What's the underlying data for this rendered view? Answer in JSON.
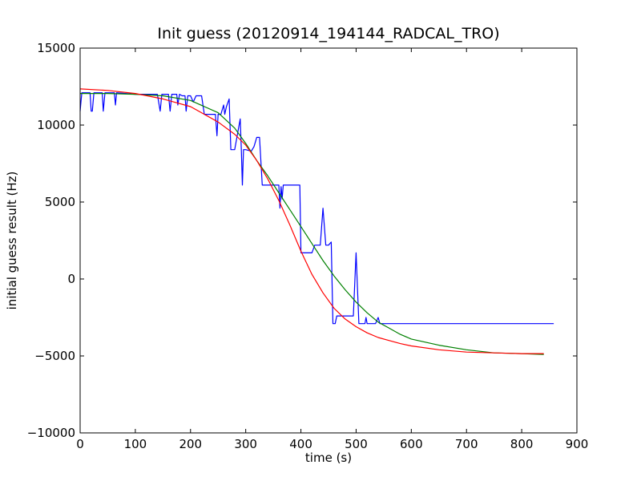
{
  "chart_data": {
    "type": "line",
    "title": "Init guess (20120914_194144_RADCAL_TRO)",
    "xlabel": "time (s)",
    "ylabel": "initial guess result (Hz)",
    "xlim": [
      0,
      900
    ],
    "ylim": [
      -10000,
      15000
    ],
    "xticks": [
      0,
      100,
      200,
      300,
      400,
      500,
      600,
      700,
      800,
      900
    ],
    "yticks": [
      -10000,
      -5000,
      0,
      5000,
      10000,
      15000
    ],
    "xtick_labels": [
      "0",
      "100",
      "200",
      "300",
      "400",
      "500",
      "600",
      "700",
      "800",
      "900"
    ],
    "ytick_labels": [
      "−10000",
      "−5000",
      "0",
      "5000",
      "10000",
      "15000"
    ],
    "grid": false,
    "series": [
      {
        "color": "#0000ff",
        "x": [
          0,
          3,
          5,
          18,
          20,
          22,
          25,
          40,
          42,
          45,
          62,
          64,
          66,
          100,
          140,
          145,
          148,
          150,
          160,
          163,
          166,
          175,
          177,
          180,
          185,
          190,
          192,
          195,
          200,
          205,
          210,
          215,
          220,
          225,
          240,
          245,
          248,
          250,
          255,
          260,
          262,
          265,
          270,
          273,
          275,
          277,
          280,
          290,
          292,
          294,
          296,
          300,
          310,
          315,
          320,
          325,
          330,
          335,
          340,
          345,
          350,
          360,
          362,
          364,
          366,
          368,
          375,
          380,
          385,
          398,
          400,
          405,
          420,
          425,
          430,
          435,
          440,
          445,
          450,
          455,
          458,
          462,
          465,
          468,
          470,
          475,
          480,
          485,
          490,
          495,
          500,
          505,
          510,
          512,
          514,
          516,
          518,
          520,
          522,
          525,
          530,
          535,
          540,
          543,
          546,
          550,
          555,
          560,
          565,
          570,
          575,
          580,
          582,
          585,
          590,
          595,
          600,
          605,
          610,
          612,
          614,
          620,
          625,
          630,
          632,
          634,
          640,
          645,
          648,
          650,
          655,
          658,
          660,
          662,
          664,
          666,
          668,
          670,
          675,
          680,
          685,
          688,
          690,
          695,
          700,
          705,
          710,
          715,
          720,
          725,
          730,
          732,
          734,
          740,
          745,
          750,
          755,
          758,
          760,
          762,
          764,
          770,
          775,
          780,
          785,
          790,
          795,
          800,
          805,
          810,
          815,
          820,
          825,
          830,
          835,
          838,
          840,
          842,
          844,
          846,
          848,
          850,
          852,
          855,
          858
        ],
        "y": [
          10900,
          12100,
          12100,
          12100,
          10900,
          10900,
          12100,
          12100,
          10900,
          12100,
          12100,
          11300,
          12100,
          12000,
          12000,
          10900,
          12000,
          12000,
          12000,
          10900,
          12000,
          12000,
          11300,
          12000,
          11900,
          11900,
          10900,
          11900,
          11900,
          11500,
          11900,
          11900,
          11900,
          10700,
          10700,
          10700,
          9300,
          10700,
          10700,
          11300,
          10700,
          11200,
          11700,
          8400,
          8400,
          8400,
          8400,
          10400,
          8400,
          6100,
          8400,
          8400,
          8300,
          8600,
          9200,
          9200,
          6100,
          6100,
          6100,
          6100,
          6100,
          6100,
          4600,
          6000,
          5200,
          6100,
          6100,
          6100,
          6100,
          6100,
          1700,
          1700,
          1700,
          2200,
          2200,
          2200,
          4600,
          2200,
          2200,
          2400,
          -2900,
          -2900,
          -2400,
          -2400,
          -2400,
          -2400,
          -2400,
          -2400,
          -2400,
          -2400,
          1700,
          -2900,
          -2900,
          -2900,
          -2900,
          -2900,
          -2500,
          -2900,
          -2900,
          -2900,
          -2900,
          -2900,
          -2500,
          -2900,
          -2900,
          -2900,
          -2900,
          -2900,
          -2900,
          -2900,
          -2900,
          -2900,
          -2900,
          -2900,
          -2900,
          -2900,
          -2900,
          -2900,
          -2900,
          -2900,
          -2900,
          -2900,
          -2900,
          -2900,
          -2900,
          -2900,
          -2900,
          -2900,
          -2900,
          -2900,
          -2900,
          -2900,
          -2900,
          -2900,
          -2900,
          -2900,
          -2900,
          -2900,
          -2900,
          -2900,
          -2900,
          -2900,
          -2900,
          -2900,
          -2900,
          -2900,
          -2900,
          -2900,
          -2900,
          -2900,
          -2900,
          -2900,
          -2900,
          -2900,
          -2900,
          -2900,
          -2900,
          -2900,
          -2900,
          -2900,
          -2900,
          -2900,
          -2900,
          -2900,
          -2900,
          -2900,
          -2900,
          -2900,
          -2900,
          -2900,
          -2900,
          -2900,
          -2900,
          -2900,
          -2900,
          -2900,
          -2900,
          -2900,
          -2900,
          -2900,
          -2900,
          -2900,
          -2900,
          -2900,
          -2900
        ]
      },
      {
        "color": "#008000",
        "x": [
          0,
          50,
          100,
          150,
          200,
          250,
          280,
          300,
          320,
          340,
          360,
          380,
          400,
          420,
          440,
          460,
          480,
          500,
          520,
          540,
          560,
          580,
          600,
          650,
          700,
          750,
          800,
          840
        ],
        "y": [
          12050,
          12050,
          12000,
          11900,
          11600,
          10800,
          9800,
          8800,
          7700,
          6700,
          5600,
          4500,
          3400,
          2300,
          1200,
          200,
          -700,
          -1500,
          -2200,
          -2800,
          -3200,
          -3600,
          -3900,
          -4300,
          -4600,
          -4800,
          -4850,
          -4900
        ]
      },
      {
        "color": "#ff0000",
        "x": [
          0,
          50,
          100,
          150,
          200,
          250,
          280,
          300,
          320,
          340,
          360,
          380,
          400,
          420,
          440,
          460,
          480,
          500,
          520,
          540,
          560,
          580,
          600,
          650,
          700,
          750,
          800,
          840
        ],
        "y": [
          12350,
          12250,
          12050,
          11700,
          11200,
          10200,
          9400,
          8700,
          7700,
          6500,
          5100,
          3500,
          1800,
          300,
          -900,
          -1900,
          -2600,
          -3100,
          -3500,
          -3800,
          -4000,
          -4200,
          -4350,
          -4600,
          -4750,
          -4800,
          -4850,
          -4850
        ]
      }
    ]
  }
}
